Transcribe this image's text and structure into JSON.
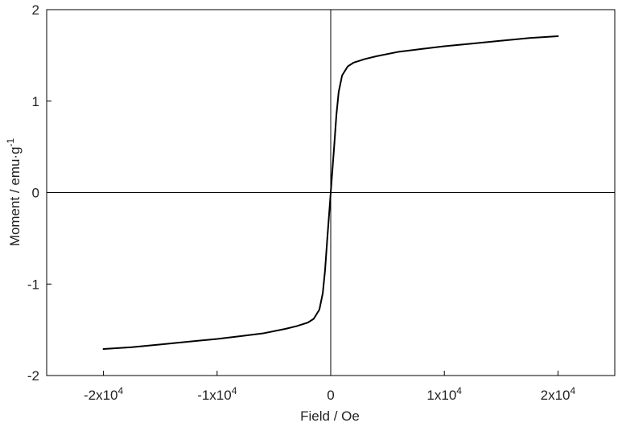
{
  "chart_data": {
    "type": "line",
    "title": "",
    "xlabel": "Field / Oe",
    "ylabel_main": "Moment / emu·g",
    "ylabel_superscript": "-1",
    "xlim": [
      -25000,
      25000
    ],
    "ylim": [
      -2,
      2
    ],
    "x_ticks": [
      {
        "value": -20000,
        "base": "-2x10",
        "exp": "4"
      },
      {
        "value": -10000,
        "base": "-1x10",
        "exp": "4"
      },
      {
        "value": 0,
        "base": "0",
        "exp": ""
      },
      {
        "value": 10000,
        "base": "1x10",
        "exp": "4"
      },
      {
        "value": 20000,
        "base": "2x10",
        "exp": "4"
      }
    ],
    "y_ticks": [
      {
        "value": 2,
        "label": "2"
      },
      {
        "value": 1,
        "label": "1"
      },
      {
        "value": 0,
        "label": "0"
      },
      {
        "value": -1,
        "label": "-1"
      },
      {
        "value": -2,
        "label": "-2"
      }
    ],
    "zero_lines": true,
    "grid": false,
    "series": [
      {
        "color": "#000000",
        "points": [
          [
            -20000,
            -1.71
          ],
          [
            -17500,
            -1.69
          ],
          [
            -15000,
            -1.66
          ],
          [
            -12500,
            -1.63
          ],
          [
            -10000,
            -1.6
          ],
          [
            -8000,
            -1.57
          ],
          [
            -6000,
            -1.54
          ],
          [
            -4000,
            -1.49
          ],
          [
            -3000,
            -1.46
          ],
          [
            -2000,
            -1.42
          ],
          [
            -1500,
            -1.38
          ],
          [
            -1000,
            -1.28
          ],
          [
            -700,
            -1.1
          ],
          [
            -500,
            -0.85
          ],
          [
            -300,
            -0.5
          ],
          [
            -150,
            -0.25
          ],
          [
            0,
            0
          ],
          [
            150,
            0.25
          ],
          [
            300,
            0.5
          ],
          [
            500,
            0.85
          ],
          [
            700,
            1.1
          ],
          [
            1000,
            1.28
          ],
          [
            1500,
            1.38
          ],
          [
            2000,
            1.42
          ],
          [
            3000,
            1.46
          ],
          [
            4000,
            1.49
          ],
          [
            6000,
            1.54
          ],
          [
            8000,
            1.57
          ],
          [
            10000,
            1.6
          ],
          [
            12500,
            1.63
          ],
          [
            15000,
            1.66
          ],
          [
            17500,
            1.69
          ],
          [
            20000,
            1.71
          ]
        ]
      }
    ]
  }
}
